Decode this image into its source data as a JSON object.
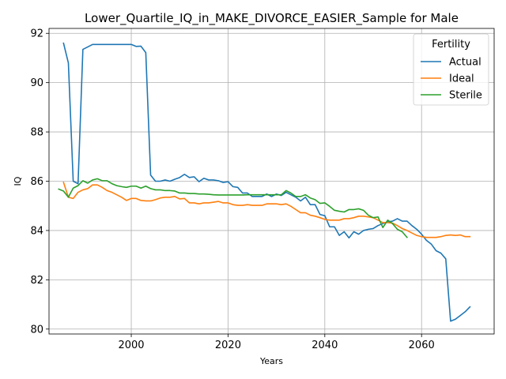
{
  "chart_data": {
    "type": "line",
    "title": "Lower_Quartile_IQ_in_MAKE_DIVORCE_EASIER_Sample for Male",
    "xlabel": "Years",
    "ylabel": "IQ",
    "xlim": [
      1983,
      2075
    ],
    "ylim": [
      79.8,
      92.2
    ],
    "xticks": [
      2000,
      2020,
      2040,
      2060
    ],
    "yticks": [
      80,
      82,
      84,
      86,
      88,
      90,
      92
    ],
    "grid": true,
    "legend": {
      "title": "Fertility",
      "placement": "top-right"
    },
    "series": [
      {
        "name": "Actual",
        "color": "#1f77b4",
        "x": [
          1986,
          1987,
          1988,
          1989,
          1990,
          1991,
          1992,
          1993,
          1994,
          1995,
          1996,
          1997,
          1998,
          1999,
          2000,
          2001,
          2002,
          2003,
          2004,
          2005,
          2006,
          2007,
          2008,
          2009,
          2010,
          2011,
          2012,
          2013,
          2014,
          2015,
          2016,
          2017,
          2018,
          2019,
          2020,
          2021,
          2022,
          2023,
          2024,
          2025,
          2026,
          2027,
          2028,
          2029,
          2030,
          2031,
          2032,
          2033,
          2034,
          2035,
          2036,
          2037,
          2038,
          2039,
          2040,
          2041,
          2042,
          2043,
          2044,
          2045,
          2046,
          2047,
          2048,
          2049,
          2050,
          2051,
          2052,
          2053,
          2054,
          2055,
          2056,
          2057,
          2058,
          2059,
          2060,
          2061,
          2062,
          2063,
          2064,
          2065,
          2066,
          2067,
          2068,
          2069,
          2070
        ],
        "values": [
          91.6,
          90.8,
          86.0,
          85.9,
          91.35,
          91.45,
          91.55,
          91.55,
          91.55,
          91.55,
          91.55,
          91.55,
          91.55,
          91.55,
          91.55,
          91.47,
          91.48,
          91.22,
          86.25,
          86.0,
          86.0,
          86.05,
          86.0,
          86.08,
          86.15,
          86.28,
          86.15,
          86.18,
          85.98,
          86.12,
          86.05,
          86.05,
          86.02,
          85.95,
          85.98,
          85.78,
          85.75,
          85.52,
          85.52,
          85.38,
          85.38,
          85.38,
          85.48,
          85.38,
          85.48,
          85.42,
          85.55,
          85.45,
          85.35,
          85.2,
          85.35,
          85.05,
          85.05,
          84.65,
          84.6,
          84.15,
          84.15,
          83.8,
          83.95,
          83.7,
          83.95,
          83.85,
          84.0,
          84.05,
          84.08,
          84.2,
          84.28,
          84.35,
          84.38,
          84.48,
          84.38,
          84.38,
          84.2,
          84.05,
          83.85,
          83.6,
          83.45,
          83.18,
          83.08,
          82.85,
          80.32,
          80.4,
          80.55,
          80.7,
          80.9
        ]
      },
      {
        "name": "Ideal",
        "color": "#ff7f0e",
        "x": [
          1986,
          1987,
          1988,
          1989,
          1990,
          1991,
          1992,
          1993,
          1994,
          1995,
          1996,
          1997,
          1998,
          1999,
          2000,
          2001,
          2002,
          2003,
          2004,
          2005,
          2006,
          2007,
          2008,
          2009,
          2010,
          2011,
          2012,
          2013,
          2014,
          2015,
          2016,
          2017,
          2018,
          2019,
          2020,
          2021,
          2022,
          2023,
          2024,
          2025,
          2026,
          2027,
          2028,
          2029,
          2030,
          2031,
          2032,
          2033,
          2034,
          2035,
          2036,
          2037,
          2038,
          2039,
          2040,
          2041,
          2042,
          2043,
          2044,
          2045,
          2046,
          2047,
          2048,
          2049,
          2050,
          2051,
          2052,
          2053,
          2054,
          2055,
          2056,
          2057,
          2058,
          2059,
          2060,
          2061,
          2062,
          2063,
          2064,
          2065,
          2066,
          2067,
          2068,
          2069,
          2070
        ],
        "values": [
          85.95,
          85.35,
          85.3,
          85.55,
          85.65,
          85.7,
          85.85,
          85.85,
          85.75,
          85.62,
          85.55,
          85.45,
          85.35,
          85.22,
          85.3,
          85.3,
          85.22,
          85.2,
          85.2,
          85.25,
          85.32,
          85.35,
          85.35,
          85.38,
          85.28,
          85.3,
          85.12,
          85.12,
          85.08,
          85.12,
          85.12,
          85.15,
          85.18,
          85.12,
          85.12,
          85.05,
          85.02,
          85.02,
          85.05,
          85.02,
          85.02,
          85.02,
          85.08,
          85.08,
          85.08,
          85.05,
          85.08,
          84.98,
          84.85,
          84.72,
          84.72,
          84.62,
          84.58,
          84.52,
          84.45,
          84.42,
          84.42,
          84.42,
          84.48,
          84.48,
          84.52,
          84.58,
          84.58,
          84.55,
          84.52,
          84.42,
          84.32,
          84.32,
          84.3,
          84.2,
          84.08,
          84.0,
          83.9,
          83.8,
          83.75,
          83.72,
          83.72,
          83.72,
          83.75,
          83.8,
          83.82,
          83.8,
          83.82,
          83.75,
          83.75
        ]
      },
      {
        "name": "Sterile",
        "color": "#2ca02c",
        "x": [
          1985,
          1986,
          1987,
          1988,
          1989,
          1990,
          1991,
          1992,
          1993,
          1994,
          1995,
          1996,
          1997,
          1998,
          1999,
          2000,
          2001,
          2002,
          2003,
          2004,
          2005,
          2006,
          2007,
          2008,
          2009,
          2010,
          2011,
          2012,
          2013,
          2014,
          2015,
          2016,
          2017,
          2018,
          2019,
          2020,
          2021,
          2022,
          2023,
          2024,
          2025,
          2026,
          2027,
          2028,
          2029,
          2030,
          2031,
          2032,
          2033,
          2034,
          2035,
          2036,
          2037,
          2038,
          2039,
          2040,
          2041,
          2042,
          2043,
          2044,
          2045,
          2046,
          2047,
          2048,
          2049,
          2050,
          2051,
          2052,
          2053,
          2054,
          2055,
          2056,
          2057
        ],
        "values": [
          85.68,
          85.6,
          85.35,
          85.72,
          85.82,
          86.02,
          85.92,
          86.05,
          86.1,
          86.02,
          86.02,
          85.9,
          85.82,
          85.78,
          85.75,
          85.8,
          85.8,
          85.72,
          85.8,
          85.7,
          85.65,
          85.65,
          85.62,
          85.62,
          85.6,
          85.52,
          85.52,
          85.5,
          85.5,
          85.48,
          85.48,
          85.47,
          85.45,
          85.44,
          85.44,
          85.44,
          85.44,
          85.44,
          85.44,
          85.45,
          85.45,
          85.45,
          85.45,
          85.45,
          85.45,
          85.45,
          85.45,
          85.62,
          85.52,
          85.38,
          85.38,
          85.45,
          85.32,
          85.25,
          85.1,
          85.12,
          84.98,
          84.82,
          84.78,
          84.75,
          84.85,
          84.85,
          84.88,
          84.82,
          84.62,
          84.52,
          84.55,
          84.12,
          84.42,
          84.28,
          84.05,
          83.95,
          83.72
        ]
      }
    ]
  }
}
